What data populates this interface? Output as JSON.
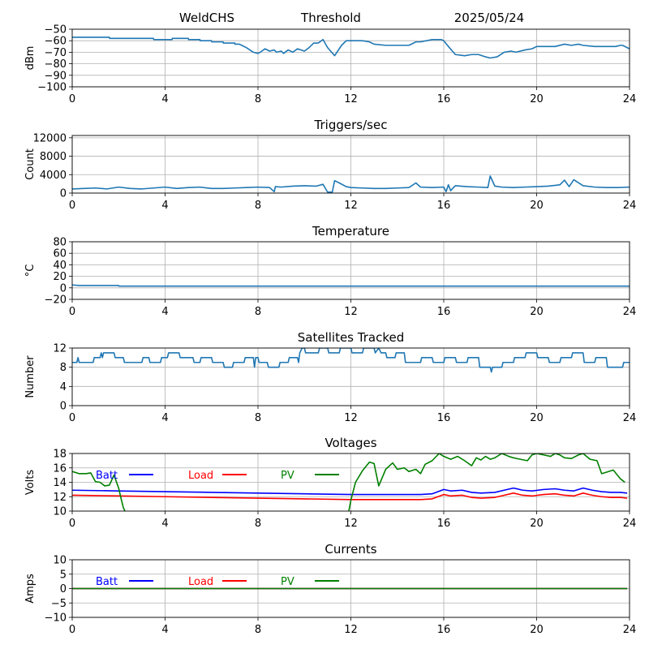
{
  "header": {
    "site": "WeldCHS",
    "mode": "Threshold",
    "date": "2025/05/24"
  },
  "colors": {
    "series": "#1f77b4",
    "batt": "#0000ff",
    "load": "#ff0000",
    "pv": "#008000",
    "grid": "#b0b0b0"
  },
  "chart_data": [
    {
      "id": "signal",
      "type": "line",
      "title": "",
      "ylabel": "dBm",
      "xlim": [
        0,
        24
      ],
      "ylim": [
        -100,
        -50
      ],
      "xticks": [
        0,
        4,
        8,
        12,
        16,
        20,
        24
      ],
      "yticks": [
        -100,
        -90,
        -80,
        -70,
        -60,
        -50
      ],
      "series": [
        {
          "color": "#1f77b4",
          "x": [
            0,
            1,
            1.01,
            1.6,
            1.61,
            3.5,
            3.51,
            4.3,
            4.31,
            5,
            5.01,
            5.5,
            5.51,
            6,
            6.01,
            6.5,
            6.51,
            7,
            7.01,
            7.2,
            7.3,
            7.5,
            7.8,
            8,
            8.1,
            8.3,
            8.5,
            8.7,
            8.8,
            9.0,
            9.1,
            9.3,
            9.5,
            9.7,
            10,
            10.2,
            10.4,
            10.6,
            10.8,
            11.0,
            11.3,
            11.6,
            11.8,
            12,
            12.5,
            12.8,
            13.0,
            13.5,
            14.5,
            14.8,
            15,
            15.5,
            15.9,
            16.0,
            16.2,
            16.5,
            16.9,
            17.2,
            17.5,
            17.8,
            18.0,
            18.3,
            18.6,
            18.9,
            19.1,
            19.5,
            19.8,
            20.0,
            20.5,
            20.8,
            21.2,
            21.5,
            21.8,
            22.0,
            22.5,
            22.8,
            23.1,
            23.4,
            23.6,
            23.7,
            24
          ],
          "y": [
            -57,
            -57,
            -57,
            -57,
            -58,
            -58,
            -59,
            -59,
            -58,
            -58,
            -59,
            -59,
            -60,
            -60,
            -61,
            -61,
            -62,
            -62,
            -63,
            -63,
            -64,
            -66,
            -70,
            -71,
            -70,
            -67,
            -69,
            -68,
            -70,
            -69,
            -71,
            -68,
            -70,
            -67,
            -69,
            -66,
            -62,
            -62,
            -59,
            -66,
            -73,
            -64,
            -60,
            -60,
            -60,
            -61,
            -63,
            -64,
            -64,
            -61,
            -61,
            -59,
            -59,
            -60,
            -65,
            -72,
            -73,
            -72,
            -72,
            -74,
            -75,
            -74,
            -70,
            -69,
            -70,
            -68,
            -67,
            -65,
            -65,
            -65,
            -63,
            -64,
            -63,
            -64,
            -65,
            -65,
            -65,
            -65,
            -64,
            -64,
            -67
          ]
        }
      ]
    },
    {
      "id": "triggers",
      "type": "line",
      "title": "Triggers/sec",
      "ylabel": "Count",
      "xlim": [
        0,
        24
      ],
      "ylim": [
        0,
        12500
      ],
      "xticks": [
        0,
        4,
        8,
        12,
        16,
        20,
        24
      ],
      "yticks": [
        0,
        4000,
        8000,
        12000
      ],
      "series": [
        {
          "color": "#1f77b4",
          "x": [
            0,
            0.5,
            1,
            1.5,
            2,
            2.5,
            3,
            3.5,
            4,
            4.5,
            5,
            5.5,
            6,
            6.5,
            7,
            7.5,
            8,
            8.5,
            8.7,
            8.75,
            9,
            9.5,
            10,
            10.5,
            10.8,
            11.0,
            11.2,
            11.3,
            11.5,
            11.8,
            12,
            12.5,
            13,
            13.5,
            14,
            14.5,
            14.8,
            15,
            15.5,
            16,
            16.1,
            16.2,
            16.3,
            16.4,
            16.5,
            17,
            17.5,
            17.9,
            18.0,
            18.2,
            18.5,
            19,
            19.5,
            20,
            20.5,
            21,
            21.2,
            21.4,
            21.6,
            22,
            22.5,
            23,
            23.5,
            24
          ],
          "y": [
            900,
            1000,
            1100,
            900,
            1300,
            1000,
            900,
            1100,
            1300,
            1000,
            1200,
            1300,
            1000,
            1000,
            1100,
            1200,
            1300,
            1200,
            300,
            1400,
            1300,
            1500,
            1600,
            1500,
            1900,
            200,
            200,
            2700,
            2200,
            1400,
            1200,
            1100,
            1000,
            1000,
            1100,
            1200,
            2200,
            1300,
            1200,
            1300,
            300,
            1800,
            500,
            1100,
            1600,
            1400,
            1300,
            1200,
            3700,
            1500,
            1300,
            1200,
            1300,
            1400,
            1500,
            1800,
            2800,
            1400,
            2900,
            1600,
            1300,
            1200,
            1200,
            1300
          ]
        }
      ]
    },
    {
      "id": "temperature",
      "type": "line",
      "title": "Temperature",
      "ylabel": "°C",
      "xlim": [
        0,
        24
      ],
      "ylim": [
        -20,
        80
      ],
      "xticks": [
        0,
        4,
        8,
        12,
        16,
        20,
        24
      ],
      "yticks": [
        -20,
        0,
        20,
        40,
        60,
        80
      ],
      "series": [
        {
          "color": "#1f77b4",
          "x": [
            0,
            0.3,
            2,
            2.01,
            24
          ],
          "y": [
            5,
            4,
            4,
            3,
            3
          ]
        }
      ]
    },
    {
      "id": "satellites",
      "type": "line",
      "title": "Satellites Tracked",
      "ylabel": "Number",
      "xlim": [
        0,
        24
      ],
      "ylim": [
        0,
        12
      ],
      "xticks": [
        0,
        4,
        8,
        12,
        16,
        20,
        24
      ],
      "yticks": [
        0,
        4,
        8,
        12
      ],
      "series": [
        {
          "color": "#1f77b4",
          "x": [
            0,
            0.2,
            0.25,
            0.3,
            0.9,
            0.95,
            1.2,
            1.25,
            1.3,
            1.35,
            1.8,
            1.85,
            2.2,
            2.25,
            2.3,
            3.0,
            3.05,
            3.3,
            3.35,
            3.8,
            3.85,
            4.1,
            4.15,
            4.6,
            4.65,
            5.2,
            5.25,
            5.5,
            5.55,
            6.0,
            6.05,
            6.5,
            6.55,
            6.9,
            6.95,
            7.4,
            7.45,
            7.8,
            7.85,
            7.9,
            8.0,
            8.05,
            8.4,
            8.45,
            8.9,
            8.95,
            9.3,
            9.35,
            9.7,
            9.75,
            9.8,
            9.9,
            10.0,
            10.05,
            10.6,
            10.65,
            11.0,
            11.05,
            11.5,
            11.55,
            12.0,
            12.05,
            12.5,
            12.55,
            13.0,
            13.05,
            13.2,
            13.3,
            13.5,
            13.55,
            13.9,
            13.95,
            14.3,
            14.35,
            15.0,
            15.05,
            15.5,
            15.55,
            16.0,
            16.05,
            16.5,
            16.55,
            17.0,
            17.05,
            17.5,
            17.55,
            18.0,
            18.05,
            18.1,
            18.5,
            18.55,
            19.0,
            19.05,
            19.5,
            19.55,
            20.0,
            20.05,
            20.5,
            20.55,
            21.0,
            21.05,
            21.5,
            21.55,
            22.0,
            22.05,
            22.5,
            22.55,
            23.0,
            23.05,
            23.7,
            23.75,
            24
          ],
          "y": [
            9,
            9,
            10,
            9,
            9,
            10,
            10,
            11,
            10,
            11,
            11,
            10,
            10,
            9,
            9,
            9,
            10,
            10,
            9,
            9,
            10,
            10,
            11,
            11,
            10,
            10,
            9,
            9,
            10,
            10,
            9,
            9,
            8,
            8,
            9,
            9,
            10,
            10,
            8,
            10,
            10,
            9,
            9,
            8,
            8,
            9,
            9,
            10,
            10,
            9,
            11,
            12,
            12,
            11,
            11,
            12,
            12,
            11,
            11,
            12,
            12,
            11,
            11,
            12,
            12,
            11,
            12,
            11,
            11,
            10,
            10,
            11,
            11,
            9,
            9,
            10,
            10,
            9,
            9,
            10,
            10,
            9,
            9,
            10,
            10,
            8,
            8,
            7,
            8,
            8,
            9,
            9,
            10,
            10,
            11,
            11,
            10,
            10,
            9,
            9,
            10,
            10,
            11,
            11,
            9,
            9,
            10,
            10,
            8,
            8,
            9,
            9
          ]
        }
      ]
    },
    {
      "id": "voltages",
      "type": "line",
      "title": "Voltages",
      "ylabel": "Volts",
      "xlim": [
        0,
        24
      ],
      "ylim": [
        10,
        18
      ],
      "xticks": [
        0,
        4,
        8,
        12,
        16,
        20,
        24
      ],
      "yticks": [
        10,
        12,
        14,
        16,
        18
      ],
      "legend": [
        {
          "label": "Batt",
          "color": "#0000ff"
        },
        {
          "label": "Load",
          "color": "#ff0000"
        },
        {
          "label": "PV",
          "color": "#008000"
        }
      ],
      "series": [
        {
          "name": "Batt",
          "color": "#0000ff",
          "x": [
            0,
            2,
            4,
            6,
            8,
            10,
            12,
            13.5,
            14,
            15,
            15.5,
            16,
            16.3,
            16.8,
            17.2,
            17.6,
            18.2,
            18.6,
            19.0,
            19.4,
            19.8,
            20.3,
            20.8,
            21.2,
            21.6,
            22.0,
            22.4,
            22.8,
            23.2,
            23.6,
            23.9
          ],
          "y": [
            12.9,
            12.8,
            12.7,
            12.6,
            12.5,
            12.4,
            12.3,
            12.3,
            12.3,
            12.3,
            12.4,
            13.0,
            12.8,
            12.9,
            12.6,
            12.5,
            12.6,
            12.9,
            13.2,
            12.9,
            12.8,
            13.0,
            13.1,
            12.9,
            12.8,
            13.2,
            12.9,
            12.7,
            12.6,
            12.6,
            12.5
          ]
        },
        {
          "name": "Load",
          "color": "#ff0000",
          "x": [
            0,
            2,
            4,
            6,
            8,
            10,
            12,
            13.5,
            14,
            15,
            15.5,
            16,
            16.3,
            16.8,
            17.2,
            17.6,
            18.2,
            18.6,
            19.0,
            19.4,
            19.8,
            20.3,
            20.8,
            21.2,
            21.6,
            22.0,
            22.4,
            22.8,
            23.2,
            23.6,
            23.9
          ],
          "y": [
            12.2,
            12.1,
            12.0,
            11.9,
            11.8,
            11.7,
            11.6,
            11.6,
            11.6,
            11.6,
            11.7,
            12.3,
            12.1,
            12.2,
            11.9,
            11.8,
            11.9,
            12.2,
            12.5,
            12.2,
            12.1,
            12.3,
            12.4,
            12.2,
            12.1,
            12.5,
            12.2,
            12.0,
            11.9,
            11.9,
            11.8
          ]
        },
        {
          "name": "PV",
          "color": "#008000",
          "x": [
            0,
            0.3,
            0.6,
            0.8,
            1.0,
            1.2,
            1.4,
            1.6,
            1.8,
            2.0,
            2.1,
            2.2,
            2.3,
            11.9,
            12.0,
            12.2,
            12.5,
            12.8,
            13.0,
            13.2,
            13.5,
            13.8,
            14.0,
            14.3,
            14.5,
            14.8,
            15.0,
            15.2,
            15.5,
            15.8,
            16.0,
            16.3,
            16.6,
            16.9,
            17.2,
            17.4,
            17.6,
            17.8,
            18.0,
            18.2,
            18.5,
            18.8,
            19.0,
            19.3,
            19.6,
            19.8,
            20.0,
            20.3,
            20.6,
            20.8,
            21.0,
            21.2,
            21.5,
            21.8,
            22.0,
            22.3,
            22.6,
            22.8,
            23.0,
            23.3,
            23.6,
            23.8
          ],
          "y": [
            15.5,
            15.2,
            15.2,
            15.3,
            14.1,
            14.0,
            13.5,
            13.6,
            15.0,
            13.2,
            11.8,
            10.5,
            9.8,
            9.8,
            11.5,
            14.0,
            15.6,
            16.8,
            16.6,
            13.5,
            15.8,
            16.7,
            15.8,
            16.0,
            15.5,
            15.8,
            15.2,
            16.5,
            17.0,
            18.0,
            17.6,
            17.2,
            17.6,
            17.0,
            16.3,
            17.4,
            17.1,
            17.6,
            17.2,
            17.4,
            18.0,
            17.6,
            17.4,
            17.2,
            17.0,
            17.8,
            18.0,
            17.8,
            17.6,
            18.0,
            17.8,
            17.4,
            17.3,
            17.8,
            18.0,
            17.2,
            17.0,
            15.2,
            15.4,
            15.7,
            14.5,
            14.0
          ]
        }
      ]
    },
    {
      "id": "currents",
      "type": "line",
      "title": "Currents",
      "ylabel": "Amps",
      "xlim": [
        0,
        24
      ],
      "ylim": [
        -10,
        10
      ],
      "xticks": [
        0,
        4,
        8,
        12,
        16,
        20,
        24
      ],
      "yticks": [
        -10,
        -5,
        0,
        5,
        10
      ],
      "legend": [
        {
          "label": "Batt",
          "color": "#0000ff"
        },
        {
          "label": "Load",
          "color": "#ff0000"
        },
        {
          "label": "PV",
          "color": "#008000"
        }
      ],
      "series": [
        {
          "name": "Batt",
          "color": "#0000ff",
          "x": [
            0,
            23.9
          ],
          "y": [
            0,
            0
          ]
        },
        {
          "name": "Load",
          "color": "#ff0000",
          "x": [
            0,
            23.9
          ],
          "y": [
            0,
            0
          ]
        },
        {
          "name": "PV",
          "color": "#008000",
          "x": [
            0,
            23.9
          ],
          "y": [
            0,
            0
          ]
        }
      ]
    }
  ]
}
